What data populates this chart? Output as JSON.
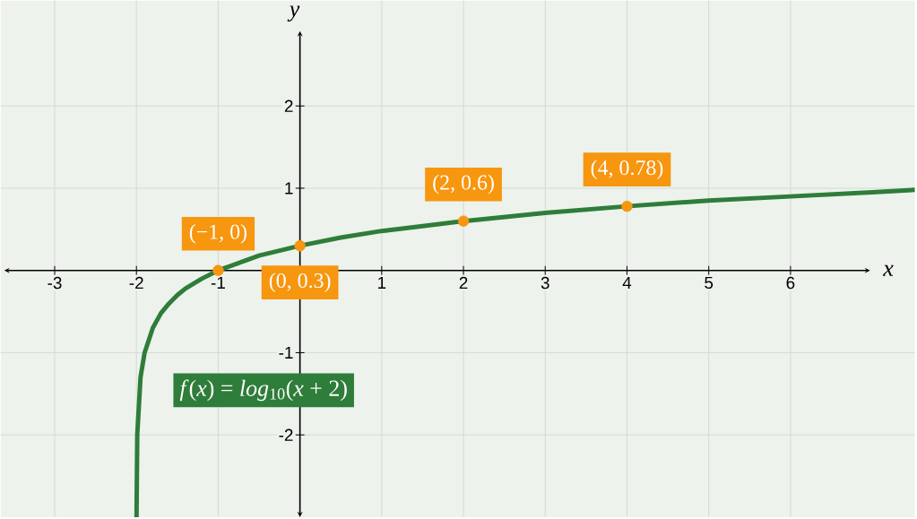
{
  "chart_data": {
    "type": "line",
    "xlabel": "x",
    "ylabel": "y",
    "xlim": [
      -3.66,
      7.52
    ],
    "ylim": [
      -3.0,
      3.28
    ],
    "xticks": [
      -3,
      -2,
      -1,
      1,
      2,
      3,
      4,
      5,
      6
    ],
    "yticks": [
      -2,
      -1,
      1,
      2
    ],
    "grid": true,
    "series": [
      {
        "name": "*f*(*x*) = *log*$_{10}$(*x* + 2)",
        "color": "#2e7d3a",
        "x": [
          -1.999,
          -1.99,
          -1.95,
          -1.9,
          -1.8,
          -1.7,
          -1.6,
          -1.5,
          -1.4,
          -1.2,
          -1,
          -0.5,
          0,
          0.5,
          1,
          1.5,
          2,
          3,
          4,
          5,
          6,
          7,
          7.52
        ],
        "values": [
          -3.0,
          -2.0,
          -1.3,
          -1.0,
          -0.7,
          -0.52,
          -0.4,
          -0.3,
          -0.22,
          -0.1,
          0,
          0.18,
          0.3,
          0.4,
          0.48,
          0.54,
          0.6,
          0.7,
          0.78,
          0.85,
          0.9,
          0.95,
          0.98
        ]
      },
      {
        "type": "scatter",
        "marker": "circle",
        "color": "#f7960f",
        "x": [
          -1,
          0,
          2,
          4
        ],
        "values": [
          0,
          0.3,
          0.6,
          0.78
        ]
      }
    ],
    "annotations": [
      {
        "text": "(−1, 0)",
        "x": -1,
        "y": 0
      },
      {
        "text": "(0, 0.3)",
        "x": 0,
        "y": 0.3
      },
      {
        "text": "(2, 0.6)",
        "x": 2,
        "y": 0.6
      },
      {
        "text": "(4, 0.78)",
        "x": 4,
        "y": 0.78
      }
    ]
  }
}
